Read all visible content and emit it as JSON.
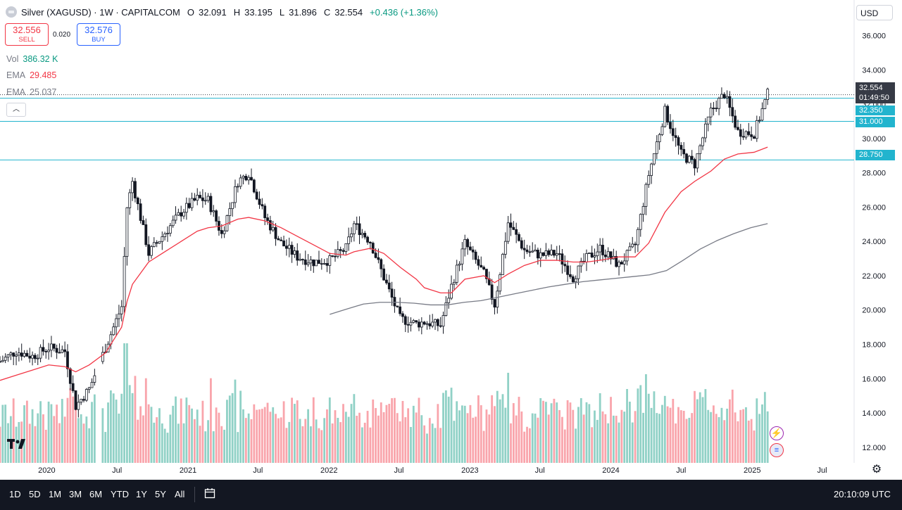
{
  "header": {
    "title": "Silver (XAGUSD) · 1W · CAPITALCOM",
    "open_label": "O",
    "open": "32.091",
    "high_label": "H",
    "high": "33.195",
    "low_label": "L",
    "low": "31.896",
    "close_label": "C",
    "close": "32.554",
    "change": "+0.436 (+1.36%)"
  },
  "trade": {
    "sell_price": "32.556",
    "sell_label": "SELL",
    "spread": "0.020",
    "buy_price": "32.576",
    "buy_label": "BUY"
  },
  "indicators": [
    {
      "label": "Vol",
      "value": "386.32 K",
      "color": "#089981"
    },
    {
      "label": "EMA",
      "value": "29.485",
      "color": "#f23645"
    },
    {
      "label": "EMA",
      "value": "25.037",
      "color": "#787b86"
    }
  ],
  "currency": "USD",
  "price_labels": {
    "current_price": "32.554",
    "countdown": "01:49:50",
    "levels": [
      "32.350",
      "31.000",
      "28.750"
    ]
  },
  "bottom_bar": {
    "ranges": [
      "1D",
      "5D",
      "1M",
      "3M",
      "6M",
      "YTD",
      "1Y",
      "5Y",
      "All"
    ],
    "clock": "20:10:09 UTC"
  },
  "icons": {
    "logo": "tradingview-logo",
    "event_1": "lightning-icon",
    "event_2": "us-flag-icon",
    "settings": "gear-icon",
    "date_range": "calendar-icon"
  },
  "colors": {
    "up": "#089981",
    "down": "#f23645",
    "ema_fast": "#f23645",
    "ema_slow": "#787b86",
    "levels": "#22b4ce",
    "candle_body": "#131722"
  },
  "chart_data": {
    "type": "candlestick",
    "title": "Silver (XAGUSD) · 1W · CAPITALCOM",
    "ylim": [
      11.5,
      36.6
    ],
    "yticks": [
      12,
      14,
      16,
      18,
      20,
      22,
      24,
      26,
      28,
      30,
      32,
      34,
      36
    ],
    "ytick_labels": [
      "12.000",
      "14.000",
      "16.000",
      "18.000",
      "20.000",
      "22.000",
      "24.000",
      "26.000",
      "28.000",
      "30.000",
      "32.000",
      "34.000",
      "36.000"
    ],
    "xlim": [
      "2019-09-02",
      "2025-09-22"
    ],
    "xticks": [
      "2020-01-01",
      "2020-07-01",
      "2021-01-01",
      "2021-07-01",
      "2022-01-01",
      "2022-07-01",
      "2023-01-01",
      "2023-07-01",
      "2024-01-01",
      "2024-07-01",
      "2025-01-01",
      "2025-07-01"
    ],
    "xtick_labels": [
      "2020",
      "Jul",
      "2021",
      "Jul",
      "2022",
      "Jul",
      "2023",
      "Jul",
      "2024",
      "Jul",
      "2025",
      "Jul"
    ],
    "horizontal_levels": [
      32.35,
      31.0,
      28.75
    ],
    "current_price": 32.554,
    "series": [
      {
        "name": "Close",
        "dates": [
          "2019-09-02",
          "2019-10-14",
          "2019-11-25",
          "2020-01-06",
          "2020-02-17",
          "2020-03-16",
          "2020-04-20",
          "2020-06-01",
          "2020-07-13",
          "2020-07-27",
          "2020-08-10",
          "2020-09-21",
          "2020-11-02",
          "2020-12-14",
          "2021-01-25",
          "2021-02-22",
          "2021-03-29",
          "2021-05-10",
          "2021-06-07",
          "2021-07-19",
          "2021-08-30",
          "2021-10-11",
          "2021-11-22",
          "2022-01-03",
          "2022-02-14",
          "2022-03-07",
          "2022-04-18",
          "2022-05-23",
          "2022-07-04",
          "2022-08-15",
          "2022-09-05",
          "2022-10-17",
          "2022-11-14",
          "2022-12-19",
          "2023-02-06",
          "2023-03-06",
          "2023-04-10",
          "2023-05-22",
          "2023-07-03",
          "2023-08-14",
          "2023-09-25",
          "2023-10-30",
          "2023-12-04",
          "2024-01-22",
          "2024-03-04",
          "2024-04-08",
          "2024-05-20",
          "2024-07-01",
          "2024-08-05",
          "2024-09-16",
          "2024-10-21",
          "2024-11-25",
          "2025-01-06",
          "2025-02-10"
        ],
        "values": [
          17.0,
          17.6,
          17.3,
          17.8,
          17.6,
          14.4,
          15.4,
          17.8,
          20.2,
          26.0,
          27.5,
          23.3,
          24.5,
          25.7,
          26.5,
          26.4,
          24.4,
          27.5,
          28.0,
          25.4,
          23.9,
          23.1,
          22.8,
          22.9,
          23.6,
          25.0,
          24.0,
          21.9,
          19.5,
          19.2,
          19.3,
          19.1,
          21.4,
          23.9,
          22.1,
          20.3,
          25.1,
          23.5,
          23.2,
          23.3,
          21.9,
          23.0,
          23.6,
          22.6,
          23.8,
          27.9,
          31.6,
          29.1,
          28.5,
          31.6,
          32.6,
          30.4,
          30.3,
          32.6
        ]
      },
      {
        "name": "EMA",
        "values": [
          15.9,
          16.2,
          16.5,
          16.8,
          16.7,
          16.4,
          16.8,
          17.5,
          19.0,
          20.5,
          21.5,
          22.8,
          23.4,
          24.0,
          24.6,
          24.8,
          24.9,
          25.3,
          25.4,
          25.2,
          24.8,
          24.3,
          23.8,
          23.3,
          23.2,
          23.4,
          23.6,
          23.3,
          22.5,
          21.8,
          21.3,
          21.0,
          21.0,
          21.8,
          22.0,
          21.6,
          22.1,
          22.6,
          22.9,
          22.9,
          22.8,
          22.8,
          22.9,
          23.1,
          23.1,
          23.9,
          25.7,
          26.9,
          27.5,
          28.1,
          28.8,
          29.1,
          29.2,
          29.5
        ]
      },
      {
        "name": "EMA",
        "dates_from": "2022-01-03",
        "values": [
          19.75,
          20.05,
          20.35,
          20.45,
          20.45,
          20.4,
          20.3,
          20.3,
          20.45,
          20.55,
          20.75,
          20.95,
          21.15,
          21.35,
          21.5,
          21.65,
          21.75,
          21.85,
          21.95,
          22.05,
          22.3,
          22.9,
          23.55,
          24.05,
          24.45,
          24.8,
          25.04
        ]
      }
    ],
    "volume": {
      "max_visible_k": 760,
      "latest_k": 386.32
    }
  }
}
